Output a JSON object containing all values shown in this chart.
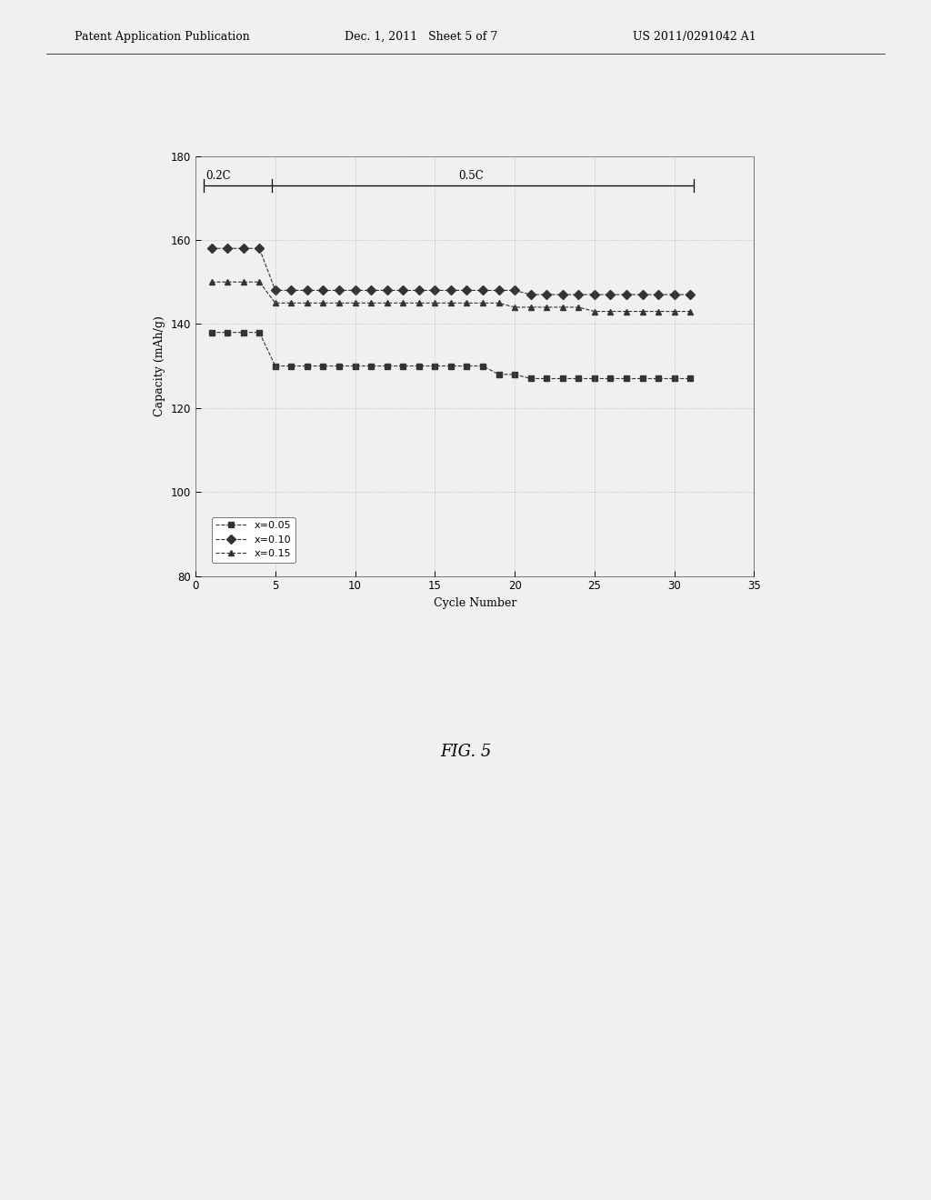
{
  "title": "",
  "xlabel": "Cycle Number",
  "ylabel": "Capacity (mAh/g)",
  "xlim": [
    0,
    35
  ],
  "ylim": [
    80,
    180
  ],
  "xticks": [
    0,
    5,
    10,
    15,
    20,
    25,
    30,
    35
  ],
  "yticks": [
    80,
    100,
    120,
    140,
    160,
    180
  ],
  "series": [
    {
      "label": "x=0.05",
      "marker": "s",
      "phase1_cycles": [
        1,
        2,
        3,
        4
      ],
      "phase1_values": [
        138,
        138,
        138,
        138
      ],
      "phase2_cycles": [
        5,
        6,
        7,
        8,
        9,
        10,
        11,
        12,
        13,
        14,
        15,
        16,
        17,
        18,
        19,
        20,
        21,
        22,
        23,
        24,
        25,
        26,
        27,
        28,
        29,
        30,
        31
      ],
      "phase2_values": [
        130,
        130,
        130,
        130,
        130,
        130,
        130,
        130,
        130,
        130,
        130,
        130,
        130,
        130,
        128,
        128,
        127,
        127,
        127,
        127,
        127,
        127,
        127,
        127,
        127,
        127,
        127
      ]
    },
    {
      "label": "x=0.10",
      "marker": "D",
      "phase1_cycles": [
        1,
        2,
        3,
        4
      ],
      "phase1_values": [
        158,
        158,
        158,
        158
      ],
      "phase2_cycles": [
        5,
        6,
        7,
        8,
        9,
        10,
        11,
        12,
        13,
        14,
        15,
        16,
        17,
        18,
        19,
        20,
        21,
        22,
        23,
        24,
        25,
        26,
        27,
        28,
        29,
        30,
        31
      ],
      "phase2_values": [
        148,
        148,
        148,
        148,
        148,
        148,
        148,
        148,
        148,
        148,
        148,
        148,
        148,
        148,
        148,
        148,
        147,
        147,
        147,
        147,
        147,
        147,
        147,
        147,
        147,
        147,
        147
      ]
    },
    {
      "label": "x=0.15",
      "marker": "^",
      "phase1_cycles": [
        1,
        2,
        3,
        4
      ],
      "phase1_values": [
        150,
        150,
        150,
        150
      ],
      "phase2_cycles": [
        5,
        6,
        7,
        8,
        9,
        10,
        11,
        12,
        13,
        14,
        15,
        16,
        17,
        18,
        19,
        20,
        21,
        22,
        23,
        24,
        25,
        26,
        27,
        28,
        29,
        30,
        31
      ],
      "phase2_values": [
        145,
        145,
        145,
        145,
        145,
        145,
        145,
        145,
        145,
        145,
        145,
        145,
        145,
        145,
        145,
        144,
        144,
        144,
        144,
        144,
        143,
        143,
        143,
        143,
        143,
        143,
        143
      ]
    }
  ],
  "annotation_02C": "0.2C",
  "annotation_05C": "0.5C",
  "bracket_y": 173,
  "bracket_x_start": 0.5,
  "bracket_x_div": 4.8,
  "bracket_x_end": 31.2,
  "fig_label": "FIG. 5",
  "header_left": "Patent Application Publication",
  "header_mid": "Dec. 1, 2011   Sheet 5 of 7",
  "header_right": "US 2011/0291042 A1",
  "background_color": "#f0f0f0",
  "plot_bg_color": "#f0f0f0",
  "marker_color": "#333333",
  "line_color": "#555555",
  "marker_size": 5,
  "line_width": 0.8,
  "line_style": "--",
  "legend_labels": [
    "x=0.05",
    "x=0.10",
    "x=0.15"
  ]
}
